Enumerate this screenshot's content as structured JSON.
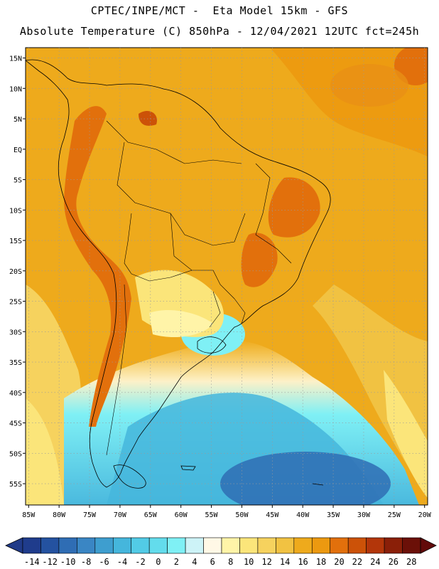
{
  "header": {
    "line1": "CPTEC/INPE/MCT -  Eta Model 15km - GFS",
    "line2": "Absolute Temperature (C) 850hPa - 12/04/2021 12UTC fct=245h"
  },
  "map": {
    "region": "South America",
    "variable": "temperature-850hPa",
    "lat_labels": [
      "15N",
      "10N",
      "5N",
      "EQ",
      "5S",
      "10S",
      "15S",
      "20S",
      "25S",
      "30S",
      "35S",
      "40S",
      "45S",
      "50S",
      "55S"
    ],
    "lon_labels": [
      "85W",
      "80W",
      "75W",
      "70W",
      "65W",
      "60W",
      "55W",
      "50W",
      "45W",
      "40W",
      "35W",
      "30W",
      "25W",
      "20W"
    ]
  },
  "colorbar": {
    "labels": [
      "-14",
      "-12",
      "-10",
      "-8",
      "-6",
      "-4",
      "-2",
      "0",
      "2",
      "4",
      "6",
      "8",
      "10",
      "12",
      "14",
      "16",
      "18",
      "20",
      "22",
      "24",
      "26",
      "28"
    ],
    "colors": [
      "#1f3c8c",
      "#2452a0",
      "#2f6db4",
      "#3a86c4",
      "#3e9ecf",
      "#45b6dc",
      "#52cbe6",
      "#63dcec",
      "#7ff0f5",
      "#cdf3f7",
      "#fff8e6",
      "#fff4a8",
      "#fbe57a",
      "#f6d25e",
      "#f1c242",
      "#eeaa1c",
      "#ec9910",
      "#e2700c",
      "#cc5208",
      "#b3360a",
      "#8a1f08",
      "#6b1008"
    ],
    "under_color": "#203a88",
    "over_color": "#620a0a"
  }
}
